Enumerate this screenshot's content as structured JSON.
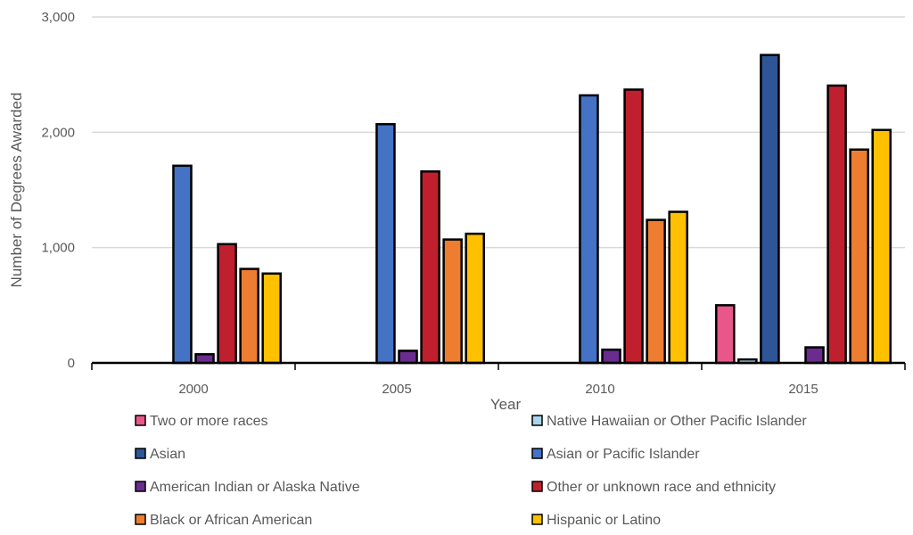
{
  "chart_data": {
    "type": "bar",
    "title": "",
    "xlabel": "Year",
    "ylabel": "Number of Degrees Awarded",
    "categories": [
      "2000",
      "2005",
      "2010",
      "2015"
    ],
    "ylim": [
      0,
      3000
    ],
    "yticks": [
      0,
      1000,
      2000,
      3000
    ],
    "ytick_labels": [
      "0",
      "1,000",
      "2,000",
      "3,000"
    ],
    "grid": true,
    "legend_position": "bottom",
    "series": [
      {
        "name": "Two or more races",
        "color": "#e9578a",
        "values": [
          null,
          null,
          null,
          500
        ]
      },
      {
        "name": "Native Hawaiian or Other Pacific Islander",
        "color": "#a9d4ee",
        "values": [
          null,
          null,
          null,
          30
        ]
      },
      {
        "name": "Asian",
        "color": "#2e5597",
        "values": [
          null,
          null,
          null,
          2670
        ]
      },
      {
        "name": "Asian or Pacific Islander",
        "color": "#4472c4",
        "values": [
          1710,
          2070,
          2320,
          null
        ]
      },
      {
        "name": "American Indian or Alaska Native",
        "color": "#6a2c8e",
        "values": [
          75,
          105,
          115,
          135
        ]
      },
      {
        "name": "Other or unknown race and ethnicity",
        "color": "#c0202e",
        "values": [
          1030,
          1660,
          2370,
          2405
        ]
      },
      {
        "name": "Black or African American",
        "color": "#ed7d31",
        "values": [
          815,
          1070,
          1240,
          1850
        ]
      },
      {
        "name": "Hispanic or Latino",
        "color": "#ffc000",
        "values": [
          775,
          1120,
          1310,
          2020
        ]
      }
    ]
  }
}
